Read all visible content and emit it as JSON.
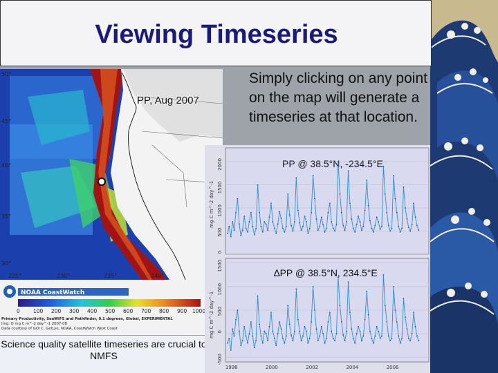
{
  "slide": {
    "title": "Viewing Timeseries",
    "explanation": "Simply clicking on any point on the map will generate a timeseries at that location.",
    "caption": "Science quality satellite timeseries are crucial to NMFS"
  },
  "map": {
    "label": "PP, Aug 2007",
    "lat_ticks": [
      "50°",
      "45°",
      "40°",
      "35°",
      "30°"
    ],
    "lon_ticks": [
      "225°",
      "230°",
      "235°",
      "240°"
    ]
  },
  "colorbar": {
    "brand": "NOAA CoastWatch",
    "ticks": [
      "0",
      "100",
      "200",
      "300",
      "400",
      "500",
      "600",
      "700",
      "800",
      "900",
      "1000"
    ],
    "metadata_lines": [
      "Primary Productivity, SeaWiFS and Pathfinder, 0.1 degrees, Global, EXPERIMENTAL",
      "Img: O mg C m^-2 day^-1 2007-08",
      "Data courtesy of GOI C. GetLye, NOAA, CoastWatch West Coast"
    ]
  },
  "plot_top": {
    "title": "PP @ 38.5°N, -234.5°E",
    "ylabel": "mg C m^-2 day^-1",
    "y_ticks": [
      "0",
      "500",
      "1000",
      "1500",
      "2000"
    ],
    "ylim": [
      0,
      2300
    ]
  },
  "plot_bottom": {
    "title": "∆PP @ 38.5°N, 234.5°E",
    "ylabel": "mg C m^-2 day^-1",
    "y_ticks": [
      "-500",
      "0",
      "500",
      "1000",
      "1500"
    ],
    "x_ticks": [
      "1998",
      "2000",
      "2002",
      "2004",
      "2006"
    ],
    "ylim": [
      -600,
      1600
    ]
  },
  "chart_data": [
    {
      "type": "line",
      "title": "PP @ 38.5°N, -234.5°E",
      "ylabel": "mg C m^-2 day^-1",
      "xlim": [
        1997.7,
        2007.8
      ],
      "ylim": [
        0,
        2300
      ],
      "series": [
        {
          "x_start": 1997.8,
          "x_step": 0.0833,
          "values": [
            450,
            600,
            380,
            700,
            520,
            900,
            1200,
            650,
            400,
            520,
            820,
            560,
            480,
            700,
            900,
            600,
            420,
            550,
            1500,
            900,
            600,
            480,
            700,
            650,
            520,
            800,
            1100,
            700,
            560,
            450,
            650,
            920,
            780,
            560,
            480,
            600,
            1300,
            850,
            620,
            500,
            700,
            1650,
            950,
            680,
            520,
            600,
            820,
            700,
            450,
            550,
            900,
            1700,
            1200,
            760,
            520,
            600,
            800,
            640,
            480,
            560,
            900,
            1100,
            700,
            560,
            500,
            640,
            2000,
            1300,
            900,
            620,
            520,
            700,
            1800,
            1100,
            760,
            560,
            480,
            640,
            820,
            700,
            520,
            600,
            950,
            1600,
            1050,
            720,
            560,
            480,
            620,
            800,
            700,
            540,
            600,
            1900,
            1300,
            900,
            620,
            500,
            560,
            1700,
            1200,
            900,
            600,
            480,
            560,
            1450,
            1000,
            760,
            580,
            500,
            640,
            1100,
            800,
            620,
            520
          ]
        }
      ]
    },
    {
      "type": "line",
      "title": "∆PP @ 38.5°N, 234.5°E",
      "ylabel": "mg C m^-2 day^-1",
      "xlim": [
        1997.7,
        2007.8
      ],
      "ylim": [
        -600,
        1600
      ],
      "x_ticks": [
        1998,
        2000,
        2002,
        2004,
        2006
      ],
      "series": [
        {
          "x_start": 1997.8,
          "x_step": 0.0833,
          "values": [
            -200,
            -100,
            -350,
            100,
            -50,
            300,
            500,
            50,
            -250,
            -150,
            150,
            -50,
            -200,
            0,
            250,
            -50,
            -300,
            -150,
            800,
            200,
            -50,
            -200,
            50,
            0,
            -150,
            150,
            450,
            50,
            -100,
            -250,
            0,
            250,
            100,
            -100,
            -200,
            -50,
            600,
            200,
            -30,
            -150,
            50,
            950,
            300,
            50,
            -150,
            -50,
            150,
            50,
            -200,
            -100,
            250,
            1000,
            500,
            100,
            -150,
            -50,
            150,
            0,
            -200,
            -100,
            250,
            450,
            50,
            -100,
            -150,
            0,
            1200,
            600,
            250,
            -30,
            -150,
            50,
            1100,
            450,
            100,
            -100,
            -200,
            0,
            150,
            50,
            -150,
            -50,
            300,
            900,
            400,
            50,
            -100,
            -200,
            -50,
            150,
            50,
            -100,
            -50,
            1250,
            600,
            250,
            -50,
            -150,
            -100,
            1000,
            500,
            250,
            -50,
            -200,
            -100,
            750,
            350,
            100,
            -100,
            -150,
            0,
            450,
            150,
            -50,
            -150
          ]
        }
      ]
    }
  ]
}
